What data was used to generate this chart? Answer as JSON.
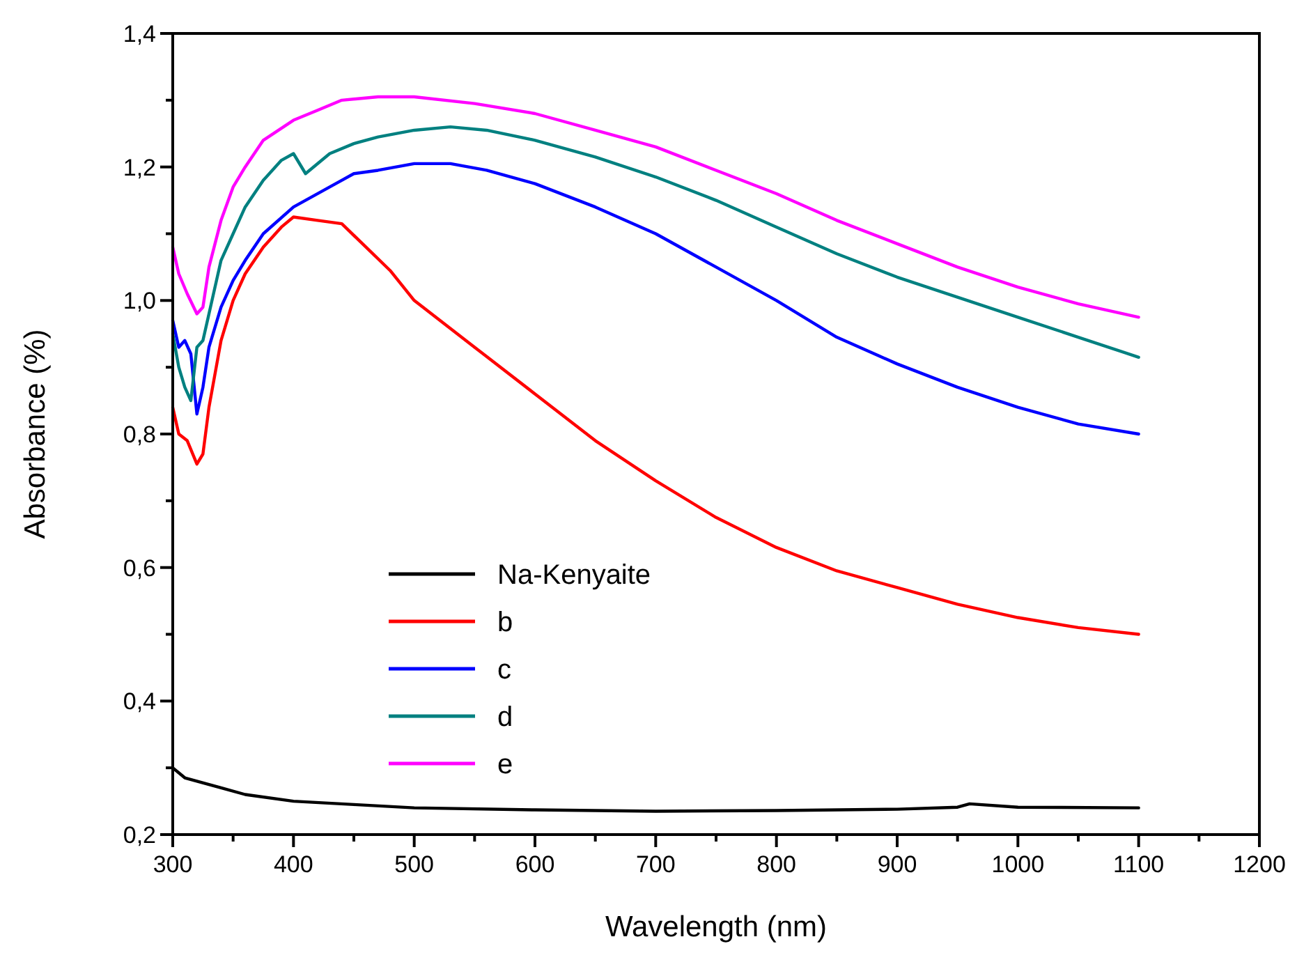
{
  "chart_data": {
    "type": "line",
    "xlabel": "Wavelength (nm)",
    "ylabel": "Absorbance (%)",
    "xlim": [
      300,
      1200
    ],
    "ylim": [
      0.2,
      1.4
    ],
    "xticks": [
      300,
      {
        "value": 350,
        "label": null
      },
      400,
      {
        "value": 450,
        "label": null
      },
      500,
      {
        "value": 550,
        "label": null
      },
      600,
      {
        "value": 650,
        "label": null
      },
      700,
      {
        "value": 750,
        "label": null
      },
      800,
      {
        "value": 850,
        "label": null
      },
      900,
      {
        "value": 950,
        "label": null
      },
      1000,
      {
        "value": 1050,
        "label": null
      },
      1100,
      {
        "value": 1150,
        "label": null
      },
      1200
    ],
    "yticks": [
      {
        "value": 0.2,
        "label": "0,2"
      },
      {
        "value": 0.3,
        "label": null
      },
      {
        "value": 0.4,
        "label": "0,4"
      },
      {
        "value": 0.5,
        "label": null
      },
      {
        "value": 0.6,
        "label": "0,6"
      },
      {
        "value": 0.7,
        "label": null
      },
      {
        "value": 0.8,
        "label": "0,8"
      },
      {
        "value": 0.9,
        "label": null
      },
      {
        "value": 1.0,
        "label": "1,0"
      },
      {
        "value": 1.1,
        "label": null
      },
      {
        "value": 1.2,
        "label": "1,2"
      },
      {
        "value": 1.3,
        "label": null
      },
      {
        "value": 1.4,
        "label": "1,4"
      }
    ],
    "grid": false,
    "legend": "bottom left",
    "line_style": "solid",
    "series": [
      {
        "name": "Na-Kenyaite",
        "color": "#000000",
        "x": [
          300,
          310,
          320,
          340,
          360,
          400,
          450,
          500,
          600,
          700,
          800,
          900,
          950,
          960,
          1000,
          1100
        ],
        "values": [
          0.3,
          0.285,
          0.28,
          0.27,
          0.26,
          0.25,
          0.245,
          0.24,
          0.237,
          0.235,
          0.236,
          0.238,
          0.241,
          0.246,
          0.241,
          0.24
        ]
      },
      {
        "name": "b",
        "color": "#ff0000",
        "x": [
          300,
          305,
          312,
          320,
          325,
          330,
          340,
          350,
          360,
          375,
          390,
          400,
          420,
          440,
          460,
          480,
          500,
          550,
          600,
          650,
          700,
          750,
          800,
          850,
          900,
          950,
          1000,
          1050,
          1100
        ],
        "values": [
          0.84,
          0.8,
          0.79,
          0.755,
          0.77,
          0.84,
          0.94,
          1.0,
          1.04,
          1.08,
          1.11,
          1.125,
          1.12,
          1.115,
          1.08,
          1.045,
          1.0,
          0.93,
          0.86,
          0.79,
          0.73,
          0.675,
          0.63,
          0.595,
          0.57,
          0.545,
          0.525,
          0.51,
          0.5
        ]
      },
      {
        "name": "c",
        "color": "#0000ff",
        "x": [
          300,
          305,
          310,
          315,
          320,
          325,
          330,
          340,
          350,
          360,
          375,
          400,
          430,
          450,
          470,
          500,
          530,
          560,
          600,
          650,
          700,
          750,
          800,
          850,
          900,
          950,
          1000,
          1050,
          1100
        ],
        "values": [
          0.97,
          0.93,
          0.94,
          0.92,
          0.83,
          0.87,
          0.93,
          0.99,
          1.03,
          1.06,
          1.1,
          1.14,
          1.17,
          1.19,
          1.195,
          1.205,
          1.205,
          1.195,
          1.175,
          1.14,
          1.1,
          1.05,
          1.0,
          0.945,
          0.905,
          0.87,
          0.84,
          0.815,
          0.8
        ]
      },
      {
        "name": "d",
        "color": "#008080",
        "x": [
          300,
          305,
          310,
          315,
          320,
          325,
          330,
          340,
          350,
          360,
          375,
          390,
          400,
          410,
          430,
          450,
          470,
          500,
          530,
          560,
          600,
          650,
          700,
          750,
          800,
          850,
          900,
          950,
          1000,
          1050,
          1100
        ],
        "values": [
          0.95,
          0.9,
          0.87,
          0.85,
          0.93,
          0.94,
          0.98,
          1.06,
          1.1,
          1.14,
          1.18,
          1.21,
          1.22,
          1.19,
          1.22,
          1.235,
          1.245,
          1.255,
          1.26,
          1.255,
          1.24,
          1.215,
          1.185,
          1.15,
          1.11,
          1.07,
          1.035,
          1.005,
          0.975,
          0.945,
          0.915
        ]
      },
      {
        "name": "e",
        "color": "#ff00ff",
        "x": [
          300,
          305,
          312,
          320,
          325,
          330,
          340,
          350,
          360,
          375,
          400,
          420,
          440,
          470,
          500,
          550,
          600,
          650,
          700,
          750,
          800,
          850,
          900,
          950,
          1000,
          1050,
          1100
        ],
        "values": [
          1.08,
          1.04,
          1.01,
          0.98,
          0.99,
          1.05,
          1.12,
          1.17,
          1.2,
          1.24,
          1.27,
          1.285,
          1.3,
          1.305,
          1.305,
          1.295,
          1.28,
          1.255,
          1.23,
          1.195,
          1.16,
          1.12,
          1.085,
          1.05,
          1.02,
          0.995,
          0.975
        ]
      }
    ]
  }
}
